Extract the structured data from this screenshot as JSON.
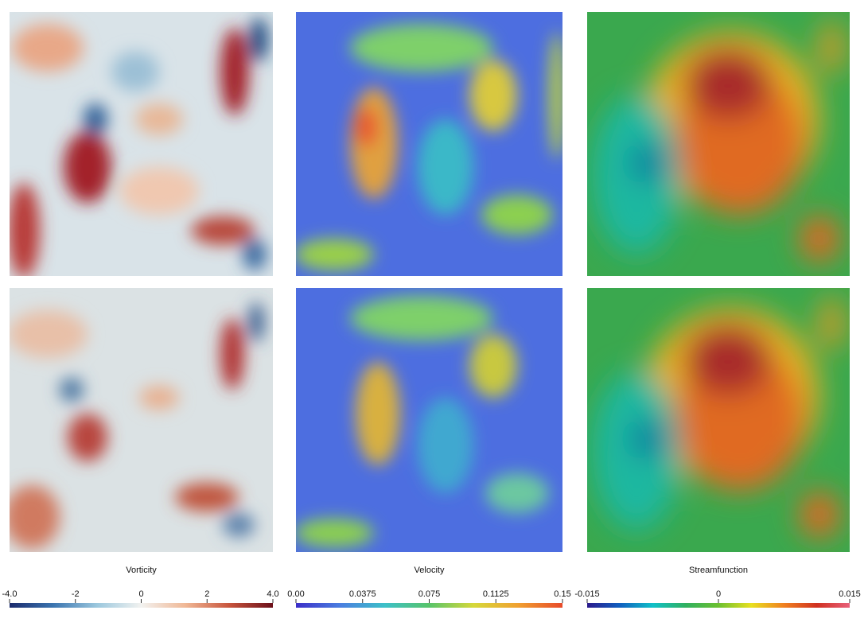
{
  "colorbars": [
    {
      "title": "Vorticity",
      "range": [
        -4,
        4
      ],
      "ticks": [
        {
          "value": -4,
          "label": "-4.0"
        },
        -2,
        0,
        2,
        {
          "value": 4,
          "label": "4.0"
        }
      ],
      "colormap": [
        "#1a2a6c",
        "#3b75b0",
        "#9cc8de",
        "#f2f2f0",
        "#f0b896",
        "#c8553d",
        "#6b0f1a"
      ]
    },
    {
      "title": "Velocity",
      "range": [
        0,
        0.15
      ],
      "ticks": [
        {
          "value": 0,
          "label": "0.00"
        },
        0.0375,
        0.075,
        0.1125,
        0.15
      ],
      "colormap": [
        "#3b2fc8",
        "#4a7ee0",
        "#3cc0c8",
        "#58c46a",
        "#d6d83a",
        "#f0a030",
        "#e84a2a"
      ]
    },
    {
      "title": "Streamfunction",
      "range": [
        -0.015,
        0.015
      ],
      "ticks": [
        -0.015,
        0,
        0.015
      ],
      "colormap": [
        "#2a1a8c",
        "#1060c0",
        "#10c0c8",
        "#30b060",
        "#6cc030",
        "#e8e020",
        "#f08020",
        "#d03020",
        "#e8607a"
      ]
    }
  ]
}
